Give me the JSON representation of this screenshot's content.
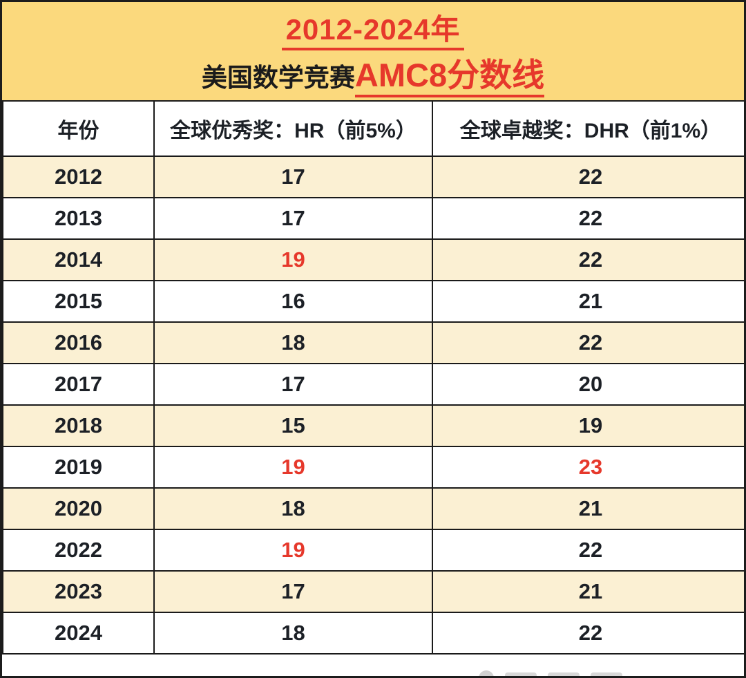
{
  "banner": {
    "title_line1": "2012-2024年",
    "title_line2_black": "美国数学竞赛",
    "title_line2_red": "AMC8分数线",
    "bg_color": "#FBD97D",
    "accent_red": "#E6382B"
  },
  "table": {
    "headers": [
      "年份",
      "全球优秀奖：HR（前5%）",
      "全球卓越奖：DHR（前1%）"
    ],
    "stripe_color": "#FBF0D3",
    "highlight_color": "#E6382B",
    "rows": [
      {
        "year": "2012",
        "hr": "17",
        "dhr": "22",
        "hr_red": false,
        "dhr_red": false
      },
      {
        "year": "2013",
        "hr": "17",
        "dhr": "22",
        "hr_red": false,
        "dhr_red": false
      },
      {
        "year": "2014",
        "hr": "19",
        "dhr": "22",
        "hr_red": true,
        "dhr_red": false
      },
      {
        "year": "2015",
        "hr": "16",
        "dhr": "21",
        "hr_red": false,
        "dhr_red": false
      },
      {
        "year": "2016",
        "hr": "18",
        "dhr": "22",
        "hr_red": false,
        "dhr_red": false
      },
      {
        "year": "2017",
        "hr": "17",
        "dhr": "20",
        "hr_red": false,
        "dhr_red": false
      },
      {
        "year": "2018",
        "hr": "15",
        "dhr": "19",
        "hr_red": false,
        "dhr_red": false
      },
      {
        "year": "2019",
        "hr": "19",
        "dhr": "23",
        "hr_red": true,
        "dhr_red": true
      },
      {
        "year": "2020",
        "hr": "18",
        "dhr": "21",
        "hr_red": false,
        "dhr_red": false
      },
      {
        "year": "2022",
        "hr": "19",
        "dhr": "22",
        "hr_red": true,
        "dhr_red": false
      },
      {
        "year": "2023",
        "hr": "17",
        "dhr": "21",
        "hr_red": false,
        "dhr_red": false
      },
      {
        "year": "2024",
        "hr": "18",
        "dhr": "22",
        "hr_red": false,
        "dhr_red": false
      }
    ]
  },
  "chart_data": {
    "type": "table",
    "title": "2012-2024年 美国数学竞赛AMC8分数线",
    "columns": [
      "年份",
      "全球优秀奖：HR（前5%）",
      "全球卓越奖：DHR（前1%）"
    ],
    "categories": [
      "2012",
      "2013",
      "2014",
      "2015",
      "2016",
      "2017",
      "2018",
      "2019",
      "2020",
      "2022",
      "2023",
      "2024"
    ],
    "series": [
      {
        "name": "全球优秀奖：HR（前5%）",
        "values": [
          17,
          17,
          19,
          16,
          18,
          17,
          15,
          19,
          18,
          19,
          17,
          18
        ]
      },
      {
        "name": "全球卓越奖：DHR（前1%）",
        "values": [
          22,
          22,
          22,
          21,
          22,
          20,
          19,
          23,
          21,
          22,
          21,
          22
        ]
      }
    ],
    "red_highlighted_cells": [
      {
        "year": "2014",
        "column": "HR",
        "value": 19
      },
      {
        "year": "2019",
        "column": "HR",
        "value": 19
      },
      {
        "year": "2019",
        "column": "DHR",
        "value": 23
      },
      {
        "year": "2022",
        "column": "HR",
        "value": 19
      }
    ],
    "legend_position": "none",
    "grid": true
  }
}
